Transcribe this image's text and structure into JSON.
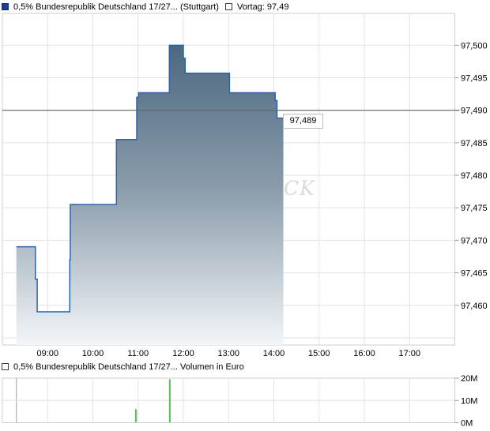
{
  "header": {
    "series_label": "0,5% Bundesrepublik Deutschland 17/27... (Stuttgart)",
    "vortag_label": "Vortag: 97,49"
  },
  "volume_header": {
    "label": "0,5% Bundesrepublik Deutschland 17/27... Volumen in Euro"
  },
  "price_flag": {
    "value": "97,489"
  },
  "watermark_text": "CK",
  "colors": {
    "line": "#2b62a8",
    "area_top": "#4c6880",
    "area_mid": "#8e9fae",
    "area_bottom": "#f3f6f8",
    "grid": "#e2e2e2",
    "border": "#cccccc",
    "prev_close_line": "#666666",
    "volume_bar": "#4ec44e",
    "session_line": "#a0a0a0",
    "legend_filled_square": "#1e3c96",
    "watermark": "#dbdbd6",
    "flag_border": "#bdbdbd"
  },
  "chart_data": [
    {
      "type": "line",
      "step": true,
      "title": "0,5% Bundesrepublik Deutschland 17/27... (Stuttgart)",
      "exchange": "Stuttgart",
      "previous_close": 97.49,
      "last_price": 97.489,
      "xlim": [
        8,
        18
      ],
      "ylim": [
        97.4539,
        97.5049
      ],
      "grid": true,
      "x_ticks": [
        {
          "t": 9,
          "label": "09:00"
        },
        {
          "t": 10,
          "label": "10:00"
        },
        {
          "t": 11,
          "label": "11:00"
        },
        {
          "t": 12,
          "label": "12:00"
        },
        {
          "t": 13,
          "label": "13:00"
        },
        {
          "t": 14,
          "label": "14:00"
        },
        {
          "t": 15,
          "label": "15:00"
        },
        {
          "t": 16,
          "label": "16:00"
        },
        {
          "t": 17,
          "label": "17:00"
        }
      ],
      "y_ticks": [
        {
          "v": 97.5,
          "label": "97,500"
        },
        {
          "v": 97.495,
          "label": "97,495"
        },
        {
          "v": 97.49,
          "label": "97,490"
        },
        {
          "v": 97.485,
          "label": "97,485"
        },
        {
          "v": 97.48,
          "label": "97,480"
        },
        {
          "v": 97.475,
          "label": "97,475"
        },
        {
          "v": 97.47,
          "label": "97,470"
        },
        {
          "v": 97.465,
          "label": "97,465"
        },
        {
          "v": 97.46,
          "label": "97,460"
        }
      ],
      "y_grid_extra": [
        97.455
      ],
      "points": [
        [
          8.31,
          97.469
        ],
        [
          8.73,
          97.464
        ],
        [
          8.77,
          97.459
        ],
        [
          9.49,
          97.467
        ],
        [
          9.5,
          97.4755
        ],
        [
          10.52,
          97.4855
        ],
        [
          10.97,
          97.492
        ],
        [
          11.01,
          97.4927
        ],
        [
          11.69,
          97.5
        ],
        [
          12.0,
          97.498
        ],
        [
          12.04,
          97.4957
        ],
        [
          13.02,
          97.4927
        ],
        [
          14.03,
          97.4915
        ],
        [
          14.07,
          97.4888
        ]
      ],
      "end_t": 14.21
    },
    {
      "type": "bar",
      "title": "0,5% Bundesrepublik Deutschland 17/27... Volumen in Euro",
      "unit": "Euro",
      "xlim": [
        8,
        18
      ],
      "ylim": [
        0,
        20
      ],
      "session_start_t": 8.31,
      "y_ticks": [
        {
          "v": 20,
          "label": "20M"
        },
        {
          "v": 10,
          "label": "10M"
        },
        {
          "v": 0,
          "label": "0M"
        }
      ],
      "bars": [
        {
          "t": 10.95,
          "value": 6.1
        },
        {
          "t": 11.7,
          "value": 19.5
        }
      ]
    }
  ]
}
